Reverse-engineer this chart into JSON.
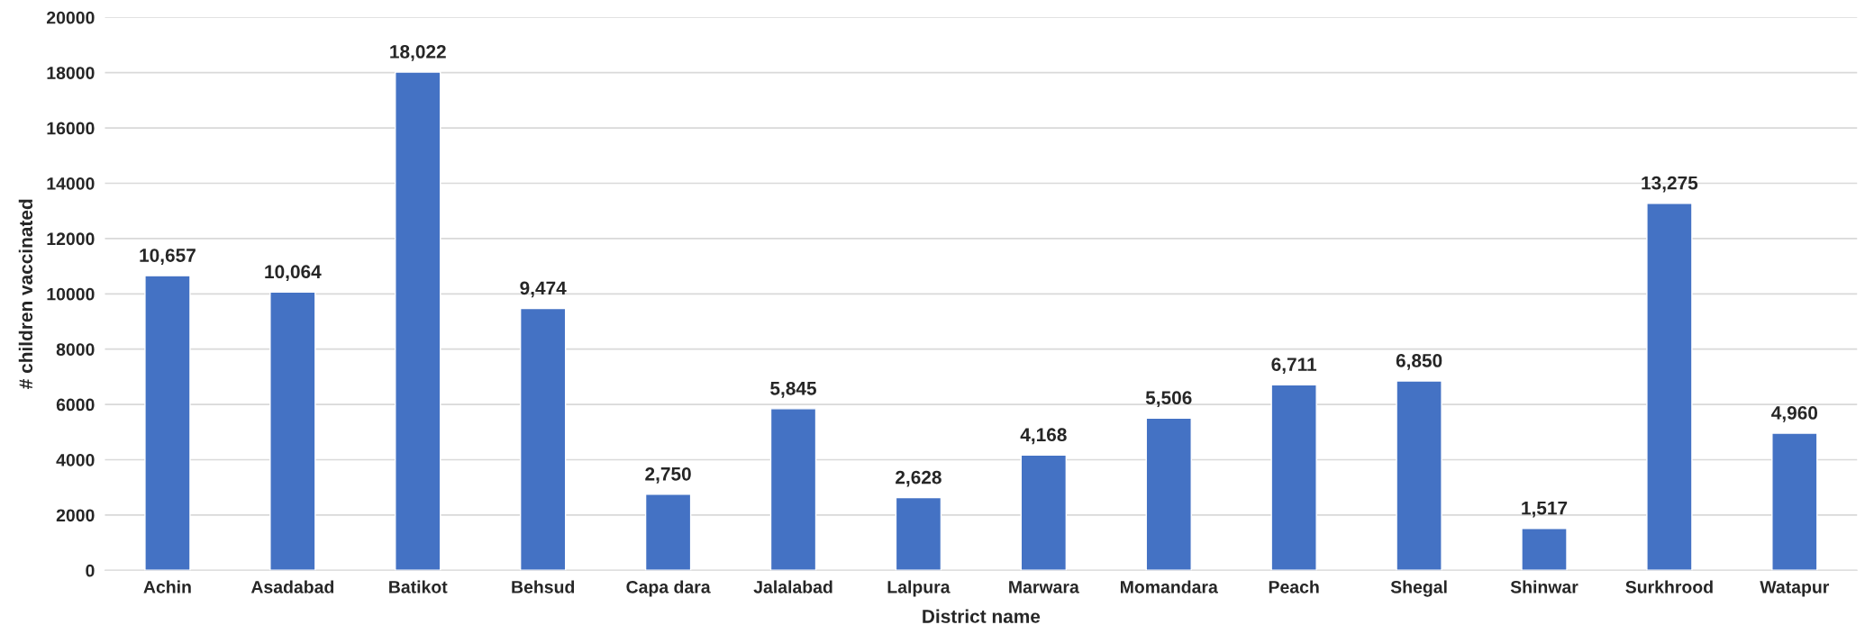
{
  "chart_data": {
    "type": "bar",
    "xlabel": "District name",
    "ylabel": "# children vaccinated",
    "categories": [
      "Achin",
      "Asadabad",
      "Batikot",
      "Behsud",
      "Capa dara",
      "Jalalabad",
      "Lalpura",
      "Marwara",
      "Momandara",
      "Peach",
      "Shegal",
      "Shinwar",
      "Surkhrood",
      "Watapur"
    ],
    "values": [
      10657,
      10064,
      18022,
      9474,
      2750,
      5845,
      2628,
      4168,
      5506,
      6711,
      6850,
      1517,
      13275,
      4960
    ],
    "value_labels": [
      "10,657",
      "10,064",
      "18,022",
      "9,474",
      "2,750",
      "5,845",
      "2,628",
      "4,168",
      "5,506",
      "6,711",
      "6,850",
      "1,517",
      "13,275",
      "4,960"
    ],
    "color": "#4472c4",
    "ylim": [
      0,
      20000
    ],
    "yticks": [
      0,
      2000,
      4000,
      6000,
      8000,
      10000,
      12000,
      14000,
      16000,
      18000,
      20000
    ],
    "grid": "y",
    "legend": false
  }
}
